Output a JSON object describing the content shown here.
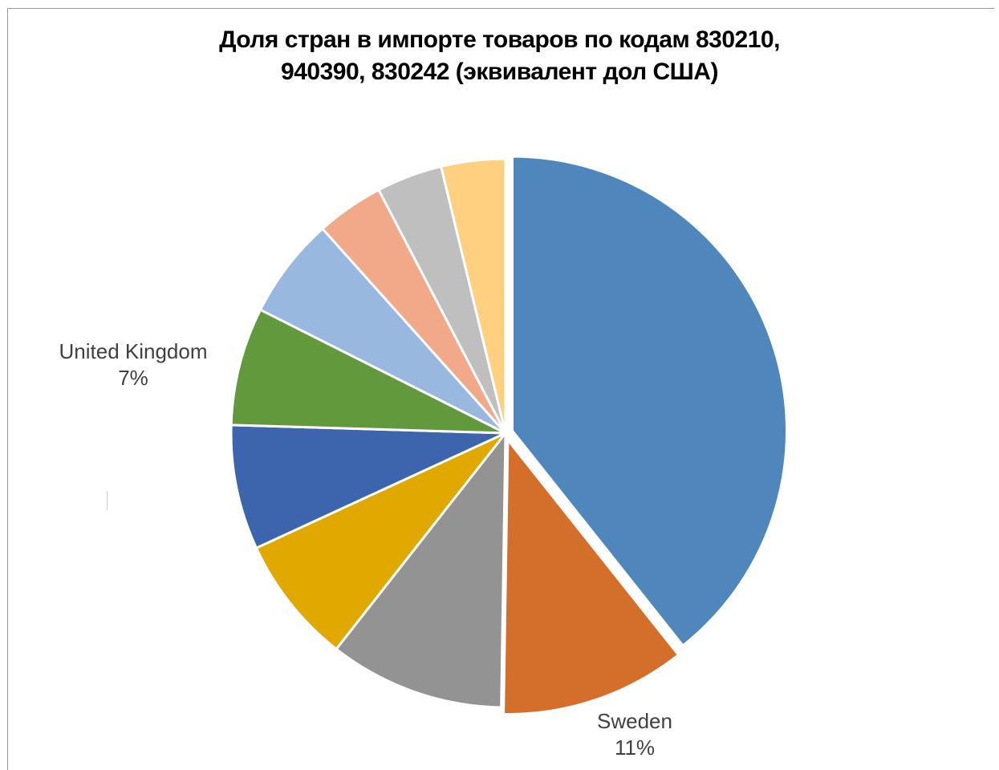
{
  "chart_data": {
    "type": "pie",
    "title_lines": [
      "Доля стран в импорте товаров по кодам 830210,",
      "940390, 830242 (эквивалент дол США)"
    ],
    "slices": [
      {
        "label": "",
        "percent": 39.6,
        "color": "#4f87bd",
        "exploded": true
      },
      {
        "label": "Sweden",
        "percent": 11,
        "percent_label": "11%",
        "color": "#d46e2b",
        "exploded": true
      },
      {
        "label": "",
        "percent": 10.4,
        "color": "#939393"
      },
      {
        "label": "",
        "percent": 7.6,
        "color": "#e1a800"
      },
      {
        "label": "",
        "percent": 7.4,
        "color": "#3d65ad"
      },
      {
        "label": "United Kingdom",
        "percent": 7,
        "percent_label": "7%",
        "color": "#63993d"
      },
      {
        "label": "",
        "percent": 6,
        "color": "#98b8e0"
      },
      {
        "label": "",
        "percent": 4,
        "color": "#f2a98a"
      },
      {
        "label": "",
        "percent": 3.9,
        "color": "#bfbfbf"
      },
      {
        "label": "",
        "percent": 3.8,
        "color": "#ffd080"
      }
    ]
  }
}
